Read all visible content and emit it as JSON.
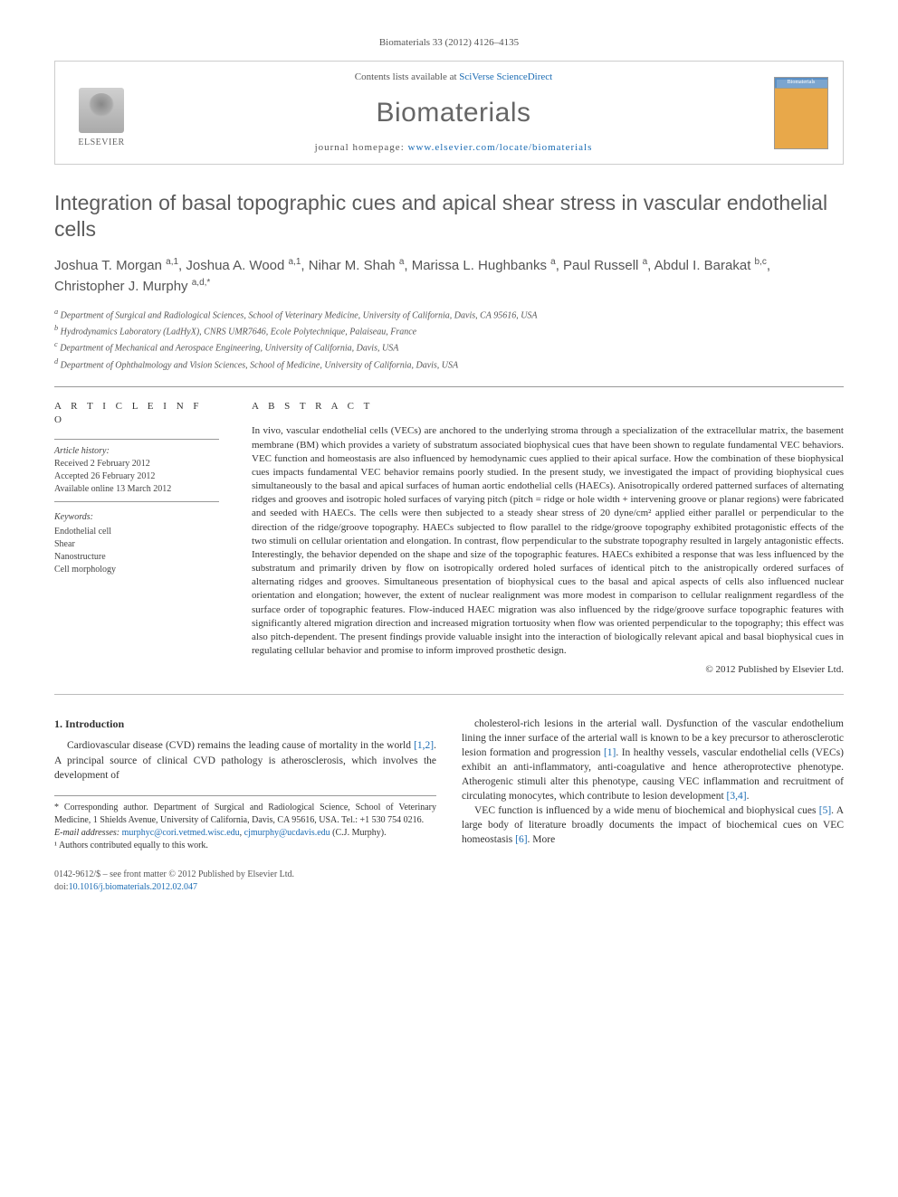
{
  "citation": "Biomaterials 33 (2012) 4126–4135",
  "header": {
    "contents_prefix": "Contents lists available at ",
    "contents_link": "SciVerse ScienceDirect",
    "journal": "Biomaterials",
    "homepage_prefix": "journal homepage: ",
    "homepage_url": "www.elsevier.com/locate/biomaterials",
    "publisher": "ELSEVIER",
    "cover_label": "Biomaterials"
  },
  "title": "Integration of basal topographic cues and apical shear stress in vascular endothelial cells",
  "authors_html": "Joshua T. Morgan <sup>a,1</sup>, Joshua A. Wood <sup>a,1</sup>, Nihar M. Shah <sup>a</sup>, Marissa L. Hughbanks <sup>a</sup>, Paul Russell <sup>a</sup>, Abdul I. Barakat <sup>b,c</sup>, Christopher J. Murphy <sup>a,d,*</sup>",
  "affiliations": [
    "a Department of Surgical and Radiological Sciences, School of Veterinary Medicine, University of California, Davis, CA 95616, USA",
    "b Hydrodynamics Laboratory (LadHyX), CNRS UMR7646, Ecole Polytechnique, Palaiseau, France",
    "c Department of Mechanical and Aerospace Engineering, University of California, Davis, USA",
    "d Department of Ophthalmology and Vision Sciences, School of Medicine, University of California, Davis, USA"
  ],
  "article_info": {
    "heading": "A R T I C L E   I N F O",
    "history_label": "Article history:",
    "received": "Received 2 February 2012",
    "accepted": "Accepted 26 February 2012",
    "online": "Available online 13 March 2012",
    "keywords_label": "Keywords:",
    "keywords": [
      "Endothelial cell",
      "Shear",
      "Nanostructure",
      "Cell morphology"
    ]
  },
  "abstract": {
    "heading": "A B S T R A C T",
    "text": "In vivo, vascular endothelial cells (VECs) are anchored to the underlying stroma through a specialization of the extracellular matrix, the basement membrane (BM) which provides a variety of substratum associated biophysical cues that have been shown to regulate fundamental VEC behaviors. VEC function and homeostasis are also influenced by hemodynamic cues applied to their apical surface. How the combination of these biophysical cues impacts fundamental VEC behavior remains poorly studied. In the present study, we investigated the impact of providing biophysical cues simultaneously to the basal and apical surfaces of human aortic endothelial cells (HAECs). Anisotropically ordered patterned surfaces of alternating ridges and grooves and isotropic holed surfaces of varying pitch (pitch = ridge or hole width + intervening groove or planar regions) were fabricated and seeded with HAECs. The cells were then subjected to a steady shear stress of 20 dyne/cm² applied either parallel or perpendicular to the direction of the ridge/groove topography. HAECs subjected to flow parallel to the ridge/groove topography exhibited protagonistic effects of the two stimuli on cellular orientation and elongation. In contrast, flow perpendicular to the substrate topography resulted in largely antagonistic effects. Interestingly, the behavior depended on the shape and size of the topographic features. HAECs exhibited a response that was less influenced by the substratum and primarily driven by flow on isotropically ordered holed surfaces of identical pitch to the anistropically ordered surfaces of alternating ridges and grooves. Simultaneous presentation of biophysical cues to the basal and apical aspects of cells also influenced nuclear orientation and elongation; however, the extent of nuclear realignment was more modest in comparison to cellular realignment regardless of the surface order of topographic features. Flow-induced HAEC migration was also influenced by the ridge/groove surface topographic features with significantly altered migration direction and increased migration tortuosity when flow was oriented perpendicular to the topography; this effect was also pitch-dependent. The present findings provide valuable insight into the interaction of biologically relevant apical and basal biophysical cues in regulating cellular behavior and promise to inform improved prosthetic design.",
    "copyright": "© 2012 Published by Elsevier Ltd."
  },
  "body": {
    "section_heading": "1. Introduction",
    "left_p1": "Cardiovascular disease (CVD) remains the leading cause of mortality in the world [1,2]. A principal source of clinical CVD pathology is atherosclerosis, which involves the development of",
    "right_p1": "cholesterol-rich lesions in the arterial wall. Dysfunction of the vascular endothelium lining the inner surface of the arterial wall is known to be a key precursor to atherosclerotic lesion formation and progression [1]. In healthy vessels, vascular endothelial cells (VECs) exhibit an anti-inflammatory, anti-coagulative and hence atheroprotective phenotype. Atherogenic stimuli alter this phenotype, causing VEC inflammation and recruitment of circulating monocytes, which contribute to lesion development [3,4].",
    "right_p2": "VEC function is influenced by a wide menu of biochemical and biophysical cues [5]. A large body of literature broadly documents the impact of biochemical cues on VEC homeostasis [6]. More"
  },
  "footnotes": {
    "corresponding": "* Corresponding author. Department of Surgical and Radiological Science, School of Veterinary Medicine, 1 Shields Avenue, University of California, Davis, CA 95616, USA. Tel.: +1 530 754 0216.",
    "email_label": "E-mail addresses:",
    "email1": "murphyc@cori.vetmed.wisc.edu",
    "email2": "cjmurphy@ucdavis.edu",
    "email_suffix": "(C.J. Murphy).",
    "equal": "¹ Authors contributed equally to this work."
  },
  "bottom": {
    "front_matter": "0142-9612/$ – see front matter © 2012 Published by Elsevier Ltd.",
    "doi_prefix": "doi:",
    "doi": "10.1016/j.biomaterials.2012.02.047"
  },
  "colors": {
    "link": "#1a6bb3",
    "text": "#333333",
    "muted": "#555555",
    "rule": "#999999"
  }
}
